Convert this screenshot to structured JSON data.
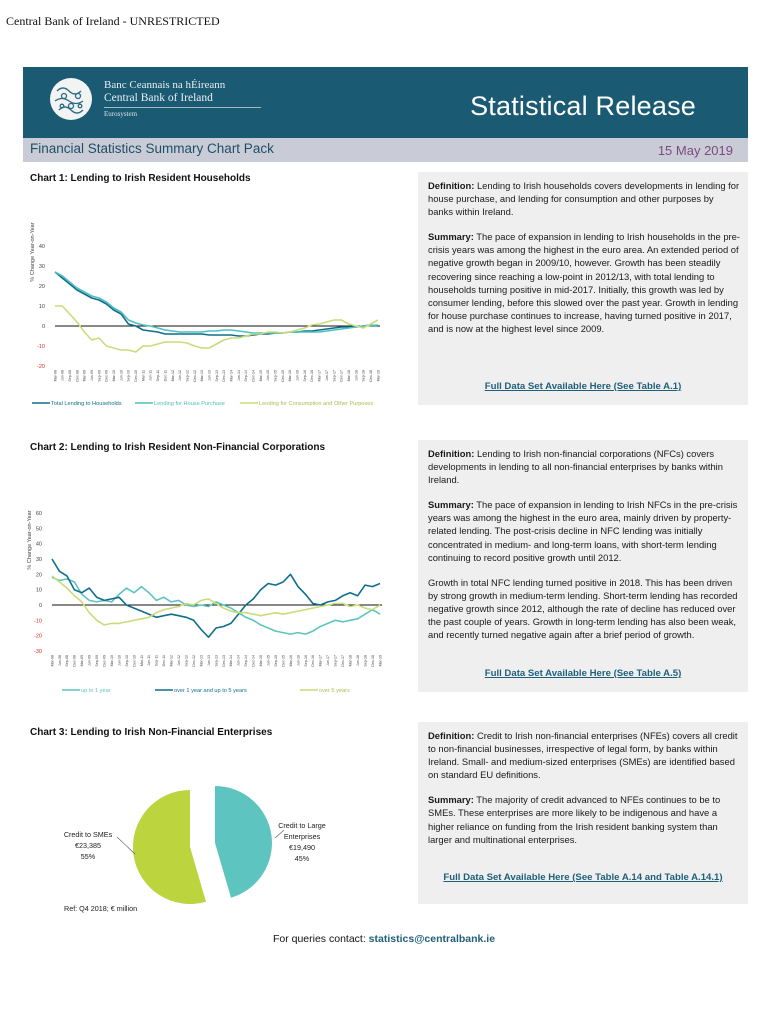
{
  "classification": "Central Bank of Ireland - UNRESTRICTED",
  "header": {
    "bank_name_irish": "Banc Ceannais na hÉireann",
    "bank_name_english": "Central Bank of Ireland",
    "eurosystem": "Eurosystem",
    "release_title": "Statistical Release",
    "pack_title": "Financial Statistics Summary Chart Pack",
    "date": "15 May 2019",
    "colors": {
      "banner": "#1b5a73",
      "subbar": "#c9ccd6",
      "date": "#7b4b7e"
    }
  },
  "sections": [
    {
      "chart_title": "Chart 1:  Lending to Irish Resident Households",
      "definition_label": "Definition:",
      "definition": " Lending to Irish households covers developments in lending for house purchase, and lending for consumption and other purposes by banks within Ireland.",
      "summary_label": "Summary:",
      "summary": " The pace of expansion in lending to Irish households in the pre-crisis years was among the highest in the euro area. An extended period of negative growth began in 2009/10, however. Growth has been steadily recovering since reaching a low-point in 2012/13, with total lending to households turning positive in mid-2017. Initially, this growth was led by consumer lending, before this slowed over the past year. Growth in lending for house purchase continues to increase, having turned positive in 2017, and is now at the highest level since 2009.",
      "link": "Full Data Set Available Here (See Table A.1)"
    },
    {
      "chart_title": "Chart 2:  Lending to Irish Resident Non-Financial Corporations",
      "definition_label": "Definition:",
      "definition": " Lending to Irish non-financial corporations (NFCs) covers developments in lending to all non-financial enterprises by banks within Ireland.",
      "summary_label": "Summary:",
      "summary": " The pace of expansion in lending to Irish NFCs in the pre-crisis years was among the highest in the euro area, mainly driven by property-related lending. The post-crisis decline in NFC lending was initially concentrated in medium- and long-term loans, with short-term lending continuing to record positive growth until 2012.",
      "summary2": "Growth in total NFC lending turned positive in 2018. This has been driven by strong growth in medium-term lending. Short-term lending has recorded negative growth since 2012, although the rate of decline has reduced over the past couple of years. Growth in long-term lending has also been weak, and recently turned negative again after a brief period of growth.",
      "link": "Full Data Set Available Here (See Table A.5)"
    },
    {
      "chart_title": "Chart 3:  Lending to Irish Non-Financial Enterprises",
      "definition_label": "Definition:",
      "definition": " Credit to Irish non-financial enterprises (NFEs)  covers all credit to non-financial businesses, irrespective of legal form, by banks within Ireland.  Small- and medium-sized enterprises (SMEs) are identified based on standard EU definitions.",
      "summary_label": "Summary:",
      "summary": " The majority of credit advanced to NFEs continues to be to SMEs. These enterprises are more likely to be indigenous and have a higher reliance on funding from the Irish resident banking system than larger and multinational enterprises.",
      "link": "Full Data Set Available Here (See Table A.14 and Table A.14.1)",
      "ref_note": "Ref: Q4 2018; € million"
    }
  ],
  "footer": {
    "label": "For queries contact: ",
    "email": "statistics@centralbank.ie"
  },
  "chart_data": [
    {
      "type": "line",
      "ylabel": "% Change Year-on-Year",
      "ylim": [
        -20,
        40
      ],
      "yticks": [
        40,
        30,
        20,
        10,
        0,
        -10,
        -20
      ],
      "legend": "bottom",
      "categories": [
        "Mar-08",
        "Jun-08",
        "Sep-08",
        "Dec-08",
        "Mar-09",
        "Jun-09",
        "Sep-09",
        "Dec-09",
        "Mar-10",
        "Jun-10",
        "Sep-10",
        "Dec-10",
        "Mar-11",
        "Jun-11",
        "Sep-11",
        "Dec-11",
        "Mar-12",
        "Jun-12",
        "Sep-12",
        "Dec-12",
        "Mar-13",
        "Jun-13",
        "Sep-13",
        "Dec-13",
        "Mar-14",
        "Jun-14",
        "Sep-14",
        "Dec-14",
        "Mar-15",
        "Jun-15",
        "Sep-15",
        "Dec-15",
        "Mar-16",
        "Jun-16",
        "Sep-16",
        "Dec-16",
        "Mar-17",
        "Jun-17",
        "Sep-17",
        "Dec-17",
        "Mar-18",
        "Jun-18",
        "Sep-18",
        "Dec-18",
        "Mar-19"
      ],
      "series": [
        {
          "name": "Total Lending to Households",
          "color": "#0f6e8c",
          "values": [
            27,
            24,
            21,
            18,
            16,
            14,
            13,
            11,
            8,
            6,
            1,
            0,
            -2,
            -2.5,
            -3,
            -4,
            -4,
            -4,
            -4,
            -4,
            -4,
            -4.5,
            -4.5,
            -4.5,
            -4.5,
            -5,
            -5,
            -4.5,
            -4,
            -4,
            -3.5,
            -3.5,
            -3,
            -3,
            -2.5,
            -2.5,
            -2,
            -1.5,
            -1,
            -0.5,
            -0.5,
            -0.5,
            0,
            0.5,
            0
          ]
        },
        {
          "name": "Lending for House Purchase",
          "color": "#4fbfbf",
          "values": [
            27,
            25,
            22,
            19,
            17,
            15,
            14,
            12,
            9,
            7,
            3,
            1.5,
            0.5,
            0,
            -1,
            -2,
            -2.5,
            -3,
            -3,
            -3,
            -3,
            -2.5,
            -2.5,
            -2,
            -2,
            -2.5,
            -3,
            -3.5,
            -3.5,
            -3.5,
            -3.5,
            -3.5,
            -3,
            -3,
            -3,
            -3,
            -3,
            -2.5,
            -2,
            -1.5,
            -1,
            -0.5,
            0,
            0.3,
            0.5
          ]
        },
        {
          "name": "Lending for Consumption and Other Purposes",
          "color": "#c9dc7a",
          "values": [
            10,
            10,
            6,
            2,
            -3,
            -7,
            -6,
            -10,
            -11,
            -12,
            -12,
            -13,
            -10,
            -10,
            -9,
            -8,
            -8,
            -8,
            -8.5,
            -10,
            -11,
            -11,
            -9,
            -7,
            -6,
            -6,
            -5,
            -4,
            -4,
            -3,
            -3,
            -3.5,
            -3,
            -2,
            -1,
            0.5,
            1,
            2,
            3,
            3,
            1,
            0,
            -1,
            1,
            3
          ]
        }
      ]
    },
    {
      "type": "line",
      "ylabel": "% Change Year-on-Year",
      "ylim": [
        -30,
        60
      ],
      "yticks": [
        60,
        50,
        40,
        30,
        20,
        10,
        0,
        -10,
        -20,
        -30
      ],
      "legend": "bottom",
      "categories": [
        "Mar-08",
        "Jun-08",
        "Sep-08",
        "Dec-08",
        "Mar-09",
        "Jun-09",
        "Sep-09",
        "Dec-09",
        "Mar-10",
        "Jun-10",
        "Sep-10",
        "Dec-10",
        "Mar-11",
        "Jun-11",
        "Sep-11",
        "Dec-11",
        "Mar-12",
        "Jun-12",
        "Sep-12",
        "Dec-12",
        "Mar-13",
        "Jun-13",
        "Sep-13",
        "Dec-13",
        "Mar-14",
        "Jun-14",
        "Sep-14",
        "Dec-14",
        "Mar-15",
        "Jun-15",
        "Sep-15",
        "Dec-15",
        "Mar-16",
        "Jun-16",
        "Sep-16",
        "Dec-16",
        "Mar-17",
        "Jun-17",
        "Sep-17",
        "Dec-17",
        "Mar-18",
        "Jun-18",
        "Sep-18",
        "Dec-18",
        "Mar-19"
      ],
      "series": [
        {
          "name": "up to 1 year",
          "color": "#5ec4c0",
          "values": [
            18,
            16,
            17,
            15,
            7,
            3,
            2,
            3,
            2,
            7,
            11,
            8,
            12,
            8,
            3,
            5,
            2,
            3,
            0,
            -1,
            0,
            -1,
            2,
            0,
            -2,
            -5,
            -8,
            -10,
            -13,
            -15,
            -17,
            -18,
            -19,
            -18,
            -19,
            -17,
            -14,
            -12,
            -10,
            -11,
            -10,
            -9,
            -6,
            -3,
            -6
          ]
        },
        {
          "name": "over 1 year and up to 5 years",
          "color": "#0f6e8c",
          "values": [
            30,
            22,
            19,
            10,
            8,
            11,
            5,
            3,
            4,
            5,
            0,
            -2,
            -4,
            -6,
            -8,
            -7,
            -6,
            -7,
            -8,
            -10,
            -16,
            -21,
            -15,
            -14,
            -12,
            -6,
            0,
            4,
            10,
            14,
            13,
            15,
            20,
            12,
            7,
            1,
            0,
            2,
            3,
            6,
            8,
            6,
            13,
            12,
            14
          ]
        },
        {
          "name": "over 5 years",
          "color": "#c9dc7a",
          "values": [
            19,
            15,
            11,
            6,
            2,
            -5,
            -10,
            -13,
            -12,
            -12,
            -11,
            -10,
            -9,
            -8,
            -5,
            -3,
            -2,
            -1,
            1,
            0,
            3,
            4,
            1,
            -2,
            -4,
            -5,
            -5,
            -6,
            -7,
            -6,
            -5,
            -6,
            -5,
            -4,
            -3,
            -2,
            -1,
            0,
            1,
            1,
            -1,
            0,
            -2,
            -3,
            0
          ]
        }
      ]
    },
    {
      "type": "pie",
      "slices": [
        {
          "name": "Credit to Large Enterprises",
          "label_lines": [
            "Credit to Large",
            "Enterprises"
          ],
          "value": 19490,
          "value_label": "€19,490",
          "percent": 45,
          "percent_label": "45%",
          "color": "#5ec4c0"
        },
        {
          "name": "Credit to SMEs",
          "label_lines": [
            "Credit to SMEs"
          ],
          "value": 23385,
          "value_label": "€23,385",
          "percent": 55,
          "percent_label": "55%",
          "color": "#bcd43e"
        }
      ]
    }
  ]
}
